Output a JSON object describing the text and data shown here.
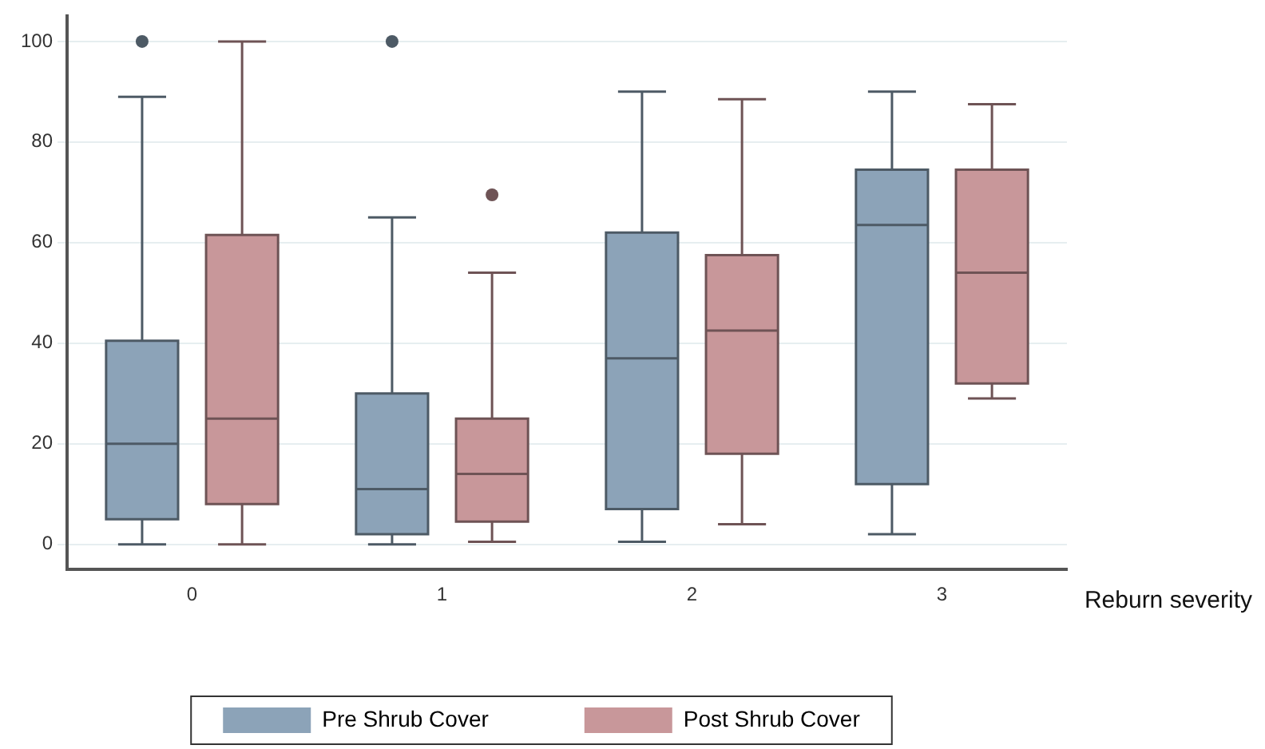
{
  "chart_data": {
    "type": "box",
    "xlabel": "Reburn severity",
    "categories": [
      "0",
      "1",
      "2",
      "3"
    ],
    "series": [
      {
        "name": "Pre Shrub Cover",
        "color": "#8ca3b8",
        "boxes": [
          {
            "low": 0,
            "q1": 5,
            "median": 20,
            "q3": 40.5,
            "high": 89,
            "outliers": [
              100
            ]
          },
          {
            "low": 0,
            "q1": 2,
            "median": 11,
            "q3": 30,
            "high": 65,
            "outliers": [
              100
            ]
          },
          {
            "low": 0.5,
            "q1": 7,
            "median": 37,
            "q3": 62,
            "high": 90
          },
          {
            "low": 2,
            "q1": 12,
            "median": 63.5,
            "q3": 74.5,
            "high": 90
          }
        ]
      },
      {
        "name": "Post Shrub Cover",
        "color": "#c8979a",
        "boxes": [
          {
            "low": 0,
            "q1": 8,
            "median": 25,
            "q3": 61.5,
            "high": 100
          },
          {
            "low": 0.5,
            "q1": 4.5,
            "median": 14,
            "q3": 25,
            "high": 54,
            "outliers": [
              69.5
            ]
          },
          {
            "low": 4,
            "q1": 18,
            "median": 42.5,
            "q3": 57.5,
            "high": 88.5
          },
          {
            "low": 29,
            "q1": 32,
            "median": 54,
            "q3": 74.5,
            "high": 87.5
          }
        ]
      }
    ],
    "ylim": [
      -5,
      105
    ],
    "yticks": [
      0,
      20,
      40,
      60,
      80,
      100
    ],
    "grid": "y",
    "legend": "bottom"
  }
}
